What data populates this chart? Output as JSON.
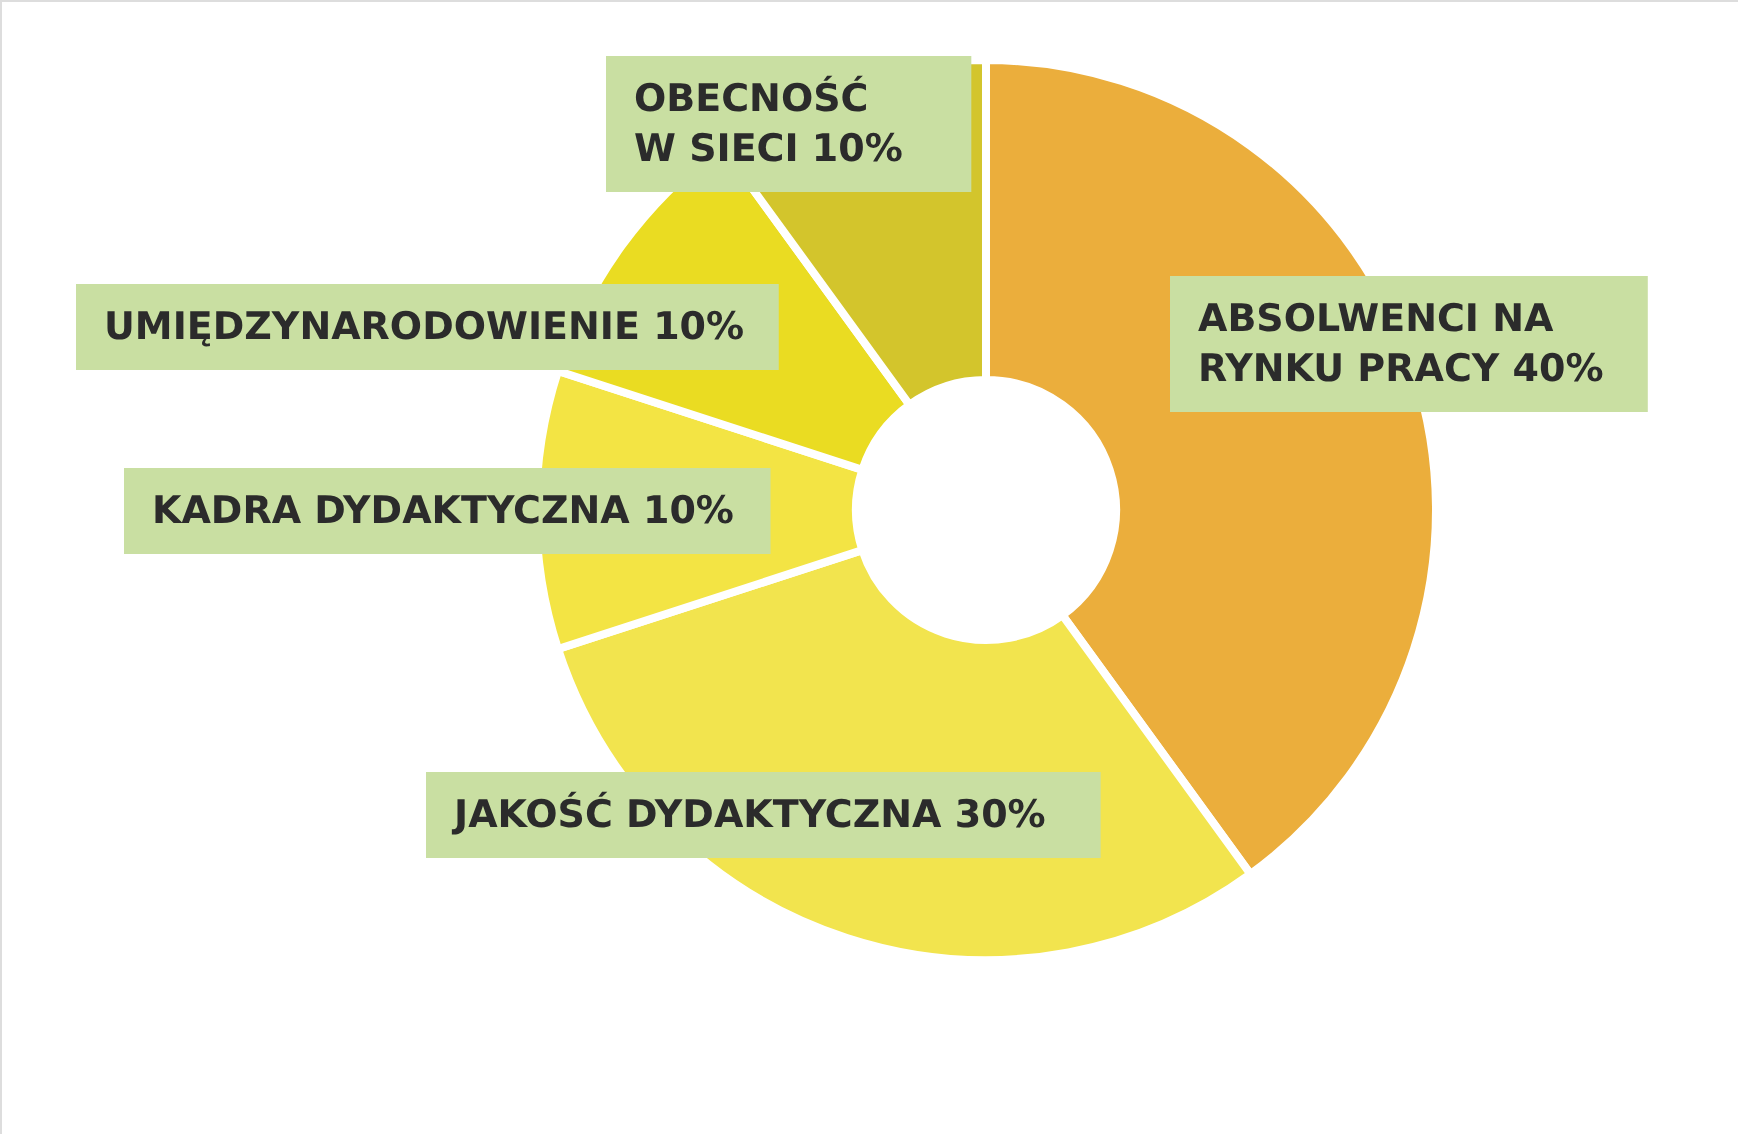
{
  "chart_data": {
    "type": "donut",
    "categories": [
      "ABSOLWENCI NA RYNKU PRACY",
      "JAKOŚĆ DYDAKTYCZNA",
      "KADRA DYDAKTYCZNA",
      "UMIĘDZYNARODOWIENIE",
      "OBECNOŚĆ W SIECI"
    ],
    "values": [
      40,
      30,
      10,
      10,
      10
    ],
    "value_labels": [
      "40%",
      "30%",
      "10%",
      "10%",
      "10%"
    ],
    "colors": [
      "#ebae3c",
      "#f2e44e",
      "#f3e444",
      "#eadc22",
      "#d3c52c"
    ]
  }
}
